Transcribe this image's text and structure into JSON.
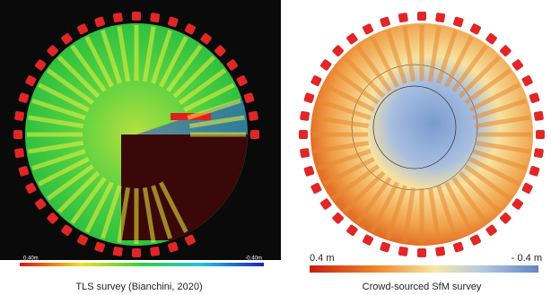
{
  "panels": [
    {
      "scale_max_label": "0.40m",
      "scale_min_label": "-0.40m",
      "caption": "TLS survey (Bianchini, 2020)"
    },
    {
      "scale_max_label": "0.4 m",
      "scale_min_label": "- 0.4 m",
      "caption": "Crowd-sourced SfM survey"
    }
  ]
}
